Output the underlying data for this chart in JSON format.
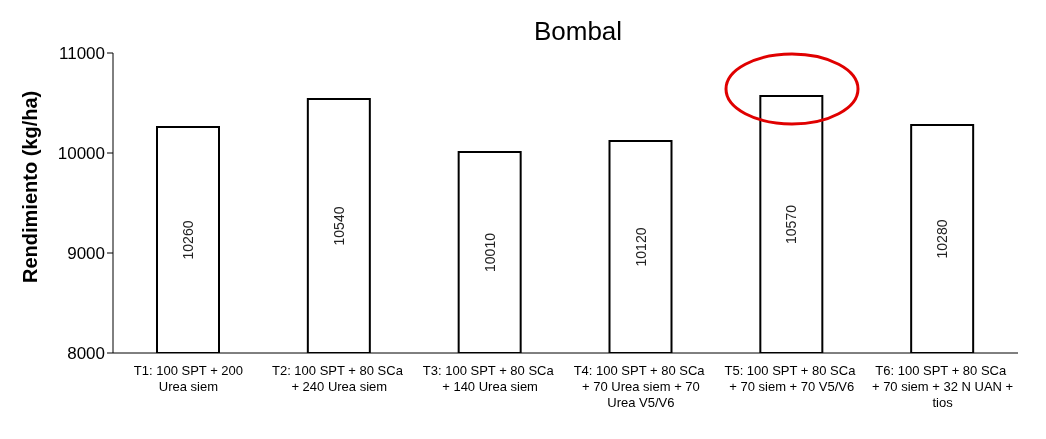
{
  "chart_data": {
    "type": "bar",
    "title": "Bombal",
    "ylabel": "Rendimiento  (kg/ha)",
    "categories": [
      "T1: 100 SPT  +  200 Urea siem",
      "T2: 100 SPT  + 80 SCa  + 240 Urea siem",
      "T3: 100 SPT + 80 SCa  + 140 Urea siem",
      "T4: 100 SPT + 80 SCa  + 70 Urea siem + 70 Urea V5/V6",
      "T5: 100 SPT + 80 SCa  + 70 siem + 70 V5/V6",
      "T6: 100 SPT + 80 SCa  + 70 siem + 32 N UAN + tios"
    ],
    "values": [
      10260,
      10540,
      10010,
      10120,
      10570,
      10280
    ],
    "color": "#ffffff",
    "ylim": [
      8000,
      11000
    ],
    "yticks": [
      8000,
      9000,
      10000,
      11000
    ],
    "data_labels": true,
    "grid": false
  }
}
